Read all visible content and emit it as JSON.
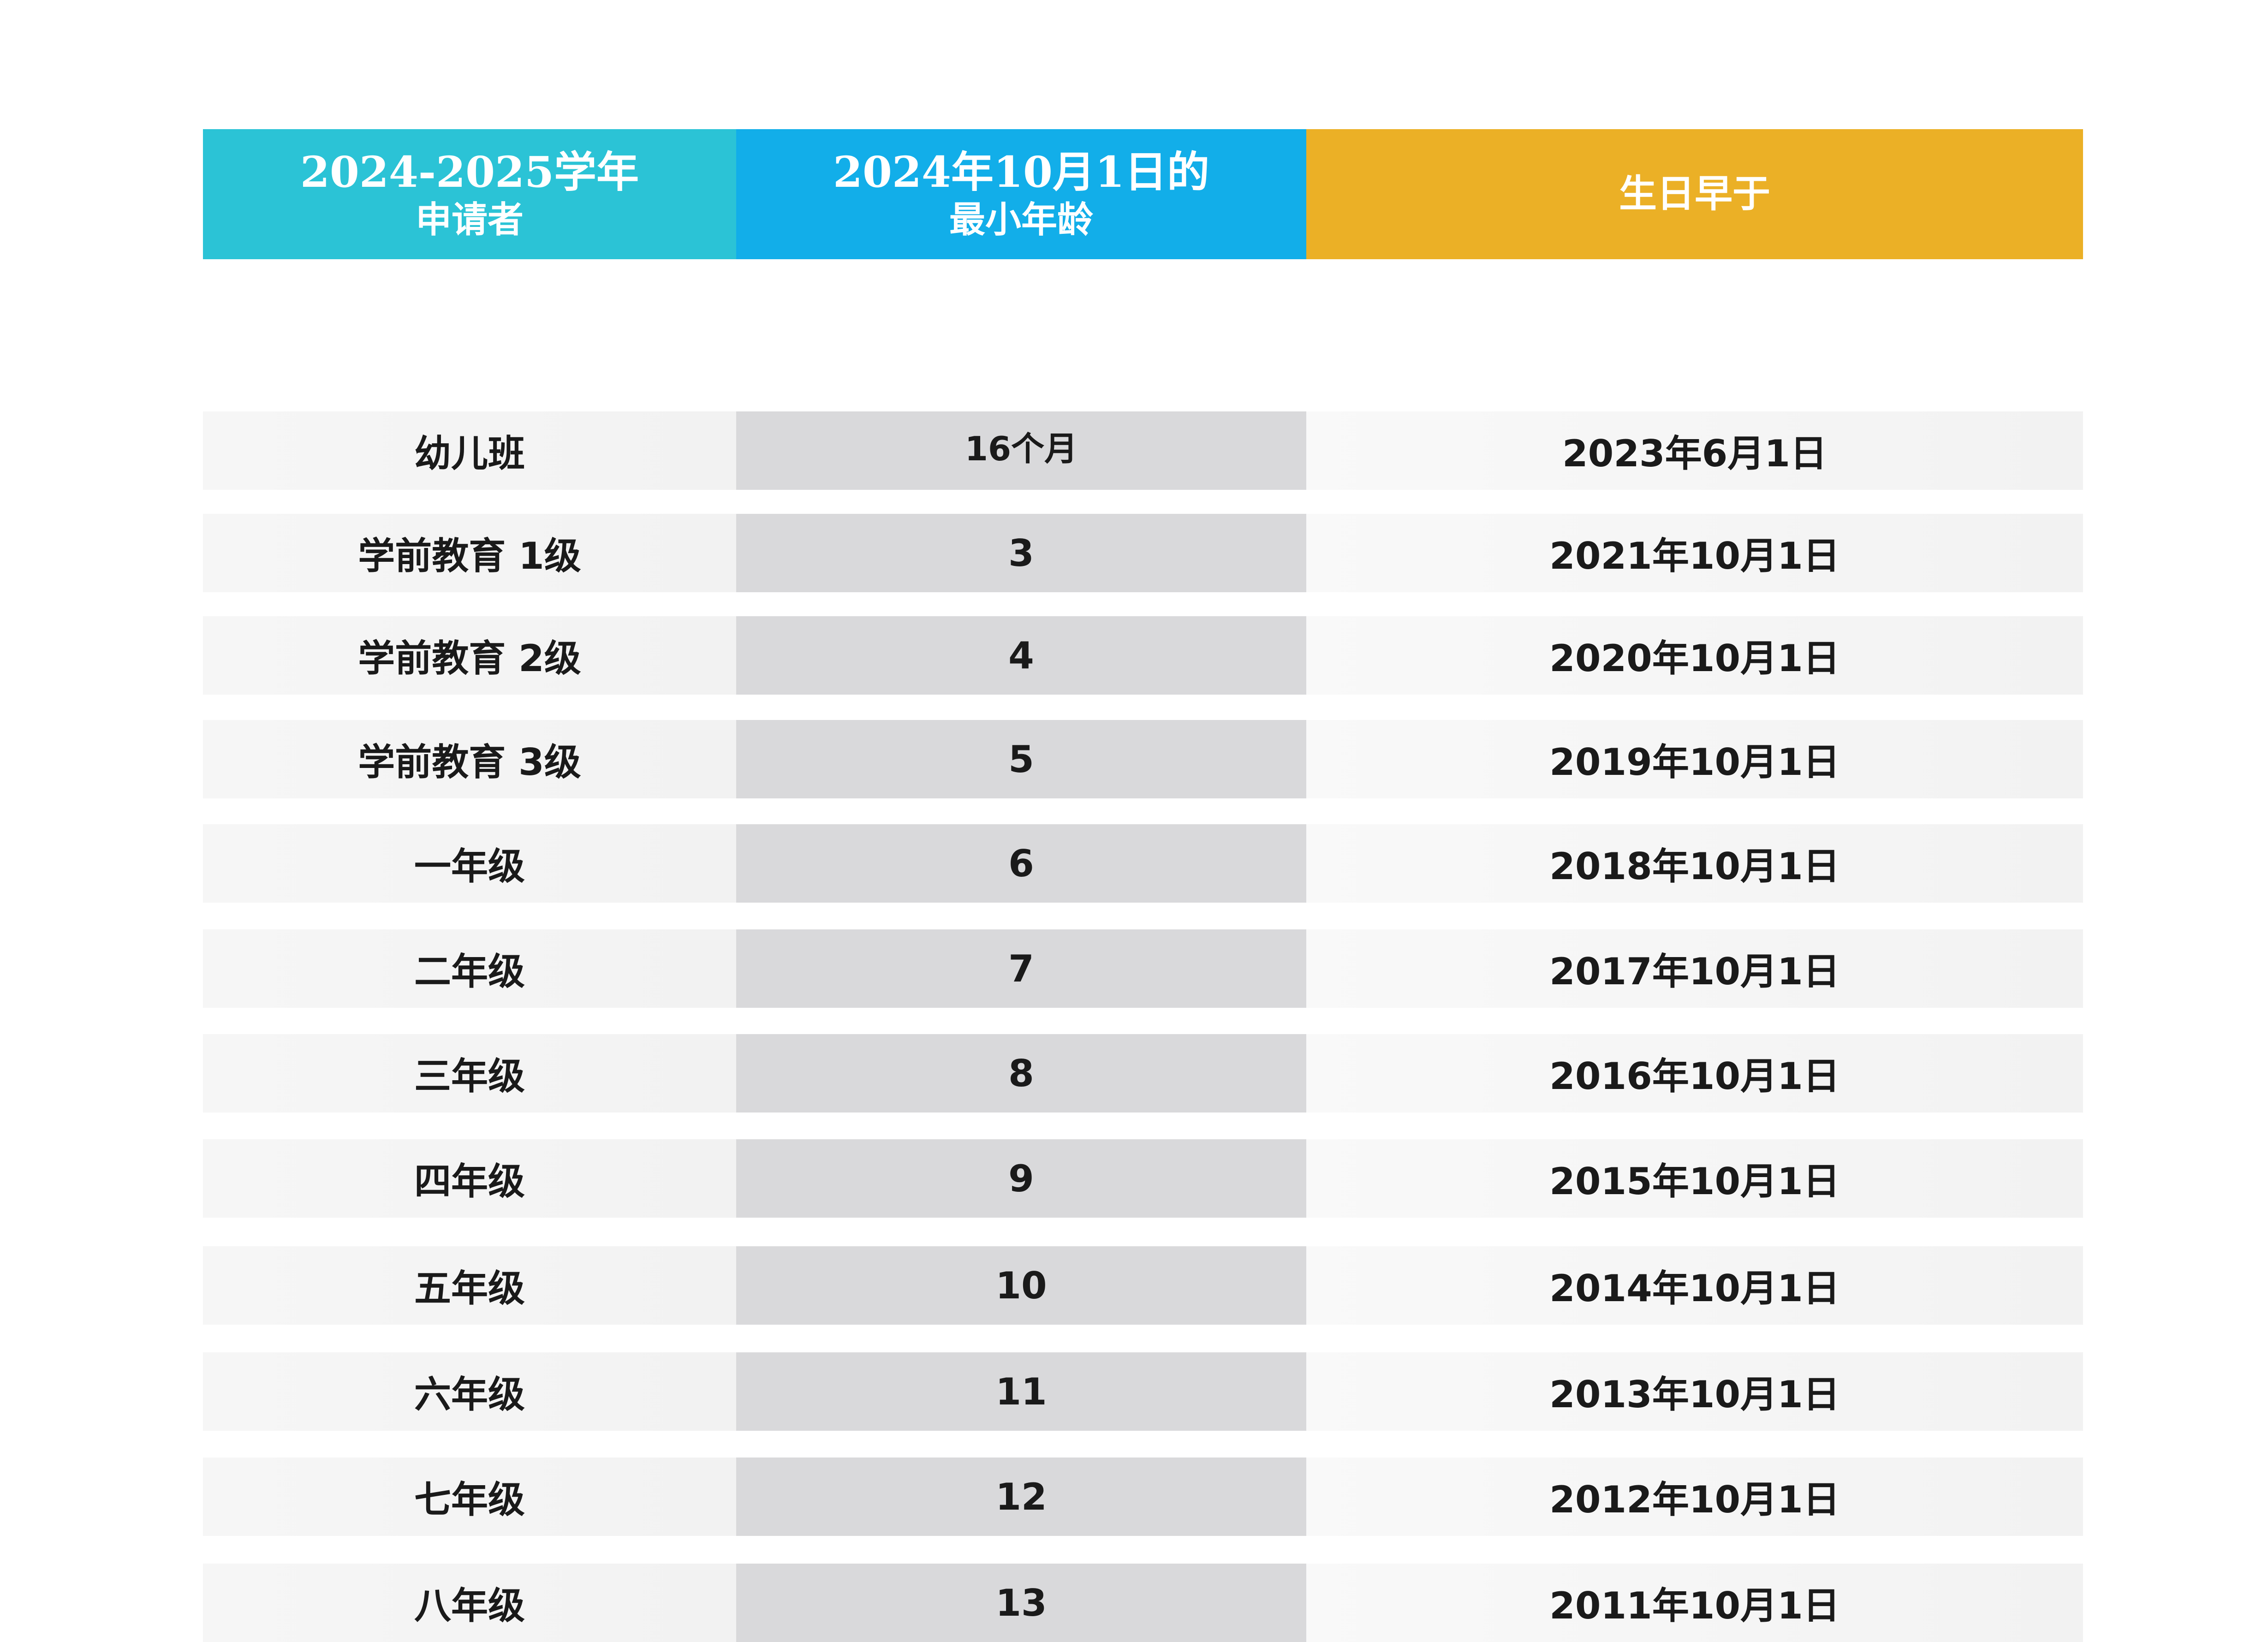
{
  "header": {
    "col1_line1": "2024-2025学年",
    "col1_line2": "申请者",
    "col2_line1": "2024年10月1日的",
    "col2_line2": "最小年龄",
    "col3": "生日早于"
  },
  "rows": [
    {
      "grade": "幼儿班",
      "min_age": "16个月",
      "born_before": "2023年6月1日"
    },
    {
      "grade": "学前教育 1级",
      "min_age": "3",
      "born_before": "2021年10月1日"
    },
    {
      "grade": "学前教育 2级",
      "min_age": "4",
      "born_before": "2020年10月1日"
    },
    {
      "grade": "学前教育 3级",
      "min_age": "5",
      "born_before": "2019年10月1日"
    },
    {
      "grade": "一年级",
      "min_age": "6",
      "born_before": "2018年10月1日"
    },
    {
      "grade": "二年级",
      "min_age": "7",
      "born_before": "2017年10月1日"
    },
    {
      "grade": "三年级",
      "min_age": "8",
      "born_before": "2016年10月1日"
    },
    {
      "grade": "四年级",
      "min_age": "9",
      "born_before": "2015年10月1日"
    },
    {
      "grade": "五年级",
      "min_age": "10",
      "born_before": "2014年10月1日"
    },
    {
      "grade": "六年级",
      "min_age": "11",
      "born_before": "2013年10月1日"
    },
    {
      "grade": "七年级",
      "min_age": "12",
      "born_before": "2012年10月1日"
    },
    {
      "grade": "八年级",
      "min_age": "13",
      "born_before": "2011年10月1日"
    }
  ],
  "colors": {
    "header_col1": "#2bc3d6",
    "header_col2": "#12aee9",
    "header_col3": "#ebb026",
    "middle_column_bg": "#d9d9db",
    "row_bg": "#f4f4f4",
    "text": "#1a1a1a"
  }
}
